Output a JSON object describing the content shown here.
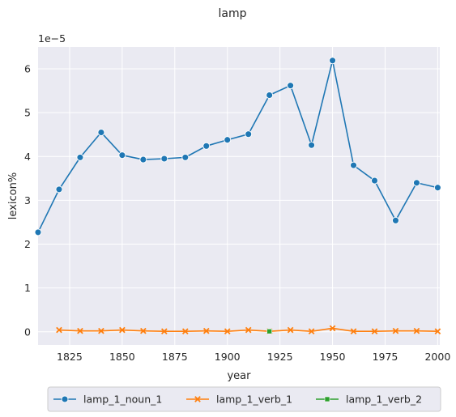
{
  "chart_data": {
    "type": "line",
    "title": "lamp",
    "xlabel": "year",
    "ylabel": "lexicon%",
    "y_scale_label": "1e−5",
    "xlim": [
      1810,
      2001
    ],
    "ylim": [
      -0.3,
      6.5
    ],
    "y_unit_multiplier": "1e-5",
    "x_ticks": [
      1825,
      1850,
      1875,
      1900,
      1925,
      1950,
      1975,
      2000
    ],
    "y_ticks": [
      0,
      1,
      2,
      3,
      4,
      5,
      6
    ],
    "grid": true,
    "legend_position": "bottom-center",
    "series": [
      {
        "name": "lamp_1_noun_1",
        "color": "#1f77b4",
        "marker": "circle",
        "x": [
          1810,
          1820,
          1830,
          1840,
          1850,
          1860,
          1870,
          1880,
          1890,
          1900,
          1910,
          1920,
          1930,
          1940,
          1950,
          1960,
          1970,
          1980,
          1990,
          2000
        ],
        "values": [
          2.27,
          3.25,
          3.98,
          4.55,
          4.03,
          3.93,
          3.95,
          3.98,
          4.24,
          4.38,
          4.51,
          5.4,
          5.62,
          4.26,
          6.19,
          3.8,
          3.45,
          2.54,
          3.4,
          3.29
        ]
      },
      {
        "name": "lamp_1_verb_1",
        "color": "#ff7f0e",
        "marker": "x",
        "x": [
          1820,
          1830,
          1840,
          1850,
          1860,
          1870,
          1880,
          1890,
          1900,
          1910,
          1920,
          1930,
          1940,
          1950,
          1960,
          1970,
          1980,
          1990,
          2000
        ],
        "values": [
          0.04,
          0.02,
          0.02,
          0.04,
          0.02,
          0.01,
          0.01,
          0.02,
          0.01,
          0.04,
          0.01,
          0.04,
          0.01,
          0.08,
          0.01,
          0.01,
          0.02,
          0.02,
          0.01
        ]
      },
      {
        "name": "lamp_1_verb_2",
        "color": "#2ca02c",
        "marker": "square",
        "x": [
          1920
        ],
        "values": [
          0.01
        ]
      }
    ]
  }
}
